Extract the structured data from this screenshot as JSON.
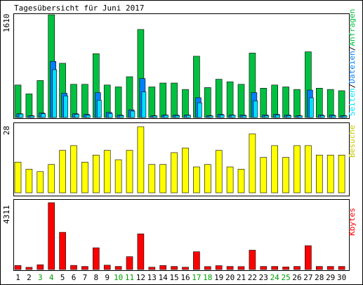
{
  "title": "Tagesübersicht für Juni 2017",
  "colors": {
    "background": "#ffffff",
    "frame": "#000000",
    "panel_border": "#aaaaaa",
    "hits": "#00c040",
    "files": "#0080ff",
    "pages": "#00e0ff",
    "visits": "#ffff00",
    "kbytes": "#ff0000",
    "day_weekday": "#000000",
    "day_weekend": "#00a000"
  },
  "chart_data": [
    {
      "type": "bar",
      "ylabel": "1610",
      "ymax": 1610,
      "legend": [
        "Seiten",
        "Dateien",
        "Anfragen"
      ],
      "series": [
        {
          "name": "Anfragen",
          "values": [
            510,
            370,
            580,
            1610,
            850,
            520,
            520,
            1000,
            510,
            480,
            640,
            1380,
            480,
            540,
            540,
            440,
            960,
            470,
            600,
            560,
            520,
            1010,
            460,
            510,
            480,
            440,
            1030,
            460,
            440,
            420
          ]
        },
        {
          "name": "Dateien",
          "values": [
            60,
            30,
            70,
            880,
            380,
            60,
            50,
            390,
            80,
            40,
            120,
            610,
            30,
            40,
            40,
            40,
            310,
            30,
            50,
            40,
            40,
            390,
            40,
            50,
            40,
            30,
            430,
            40,
            40,
            30
          ]
        },
        {
          "name": "Seiten",
          "values": [
            55,
            25,
            60,
            750,
            340,
            50,
            35,
            270,
            60,
            30,
            100,
            400,
            25,
            35,
            30,
            35,
            230,
            25,
            40,
            35,
            30,
            260,
            30,
            40,
            30,
            25,
            310,
            30,
            30,
            25
          ]
        }
      ]
    },
    {
      "type": "bar",
      "ylabel": "28",
      "ymax": 28,
      "legend": [
        "Besuche"
      ],
      "series": [
        {
          "name": "Besuche",
          "values": [
            13,
            10,
            9,
            12,
            18,
            20,
            13,
            16,
            18,
            14,
            18,
            28,
            12,
            12,
            17,
            19,
            11,
            12,
            18,
            11,
            10,
            25,
            15,
            20,
            15,
            20,
            20,
            16,
            16,
            16
          ]
        }
      ]
    },
    {
      "type": "bar",
      "ylabel": "4311",
      "ymax": 4311,
      "legend": [
        "Kbytes"
      ],
      "series": [
        {
          "name": "Kbytes",
          "values": [
            260,
            140,
            310,
            4311,
            2400,
            270,
            200,
            1400,
            280,
            200,
            830,
            2300,
            150,
            260,
            200,
            150,
            1150,
            190,
            250,
            200,
            190,
            1250,
            200,
            200,
            170,
            200,
            1540,
            200,
            200,
            200
          ]
        }
      ]
    }
  ],
  "days": {
    "labels": [
      "1",
      "2",
      "3",
      "4",
      "5",
      "6",
      "7",
      "8",
      "9",
      "10",
      "11",
      "12",
      "13",
      "14",
      "15",
      "16",
      "17",
      "18",
      "19",
      "20",
      "21",
      "22",
      "23",
      "24",
      "25",
      "26",
      "27",
      "28",
      "29",
      "30"
    ],
    "weekend": [
      false,
      false,
      true,
      true,
      false,
      false,
      false,
      false,
      false,
      true,
      true,
      false,
      false,
      false,
      false,
      false,
      true,
      true,
      false,
      false,
      false,
      false,
      false,
      true,
      true,
      false,
      false,
      false,
      false,
      false
    ]
  }
}
